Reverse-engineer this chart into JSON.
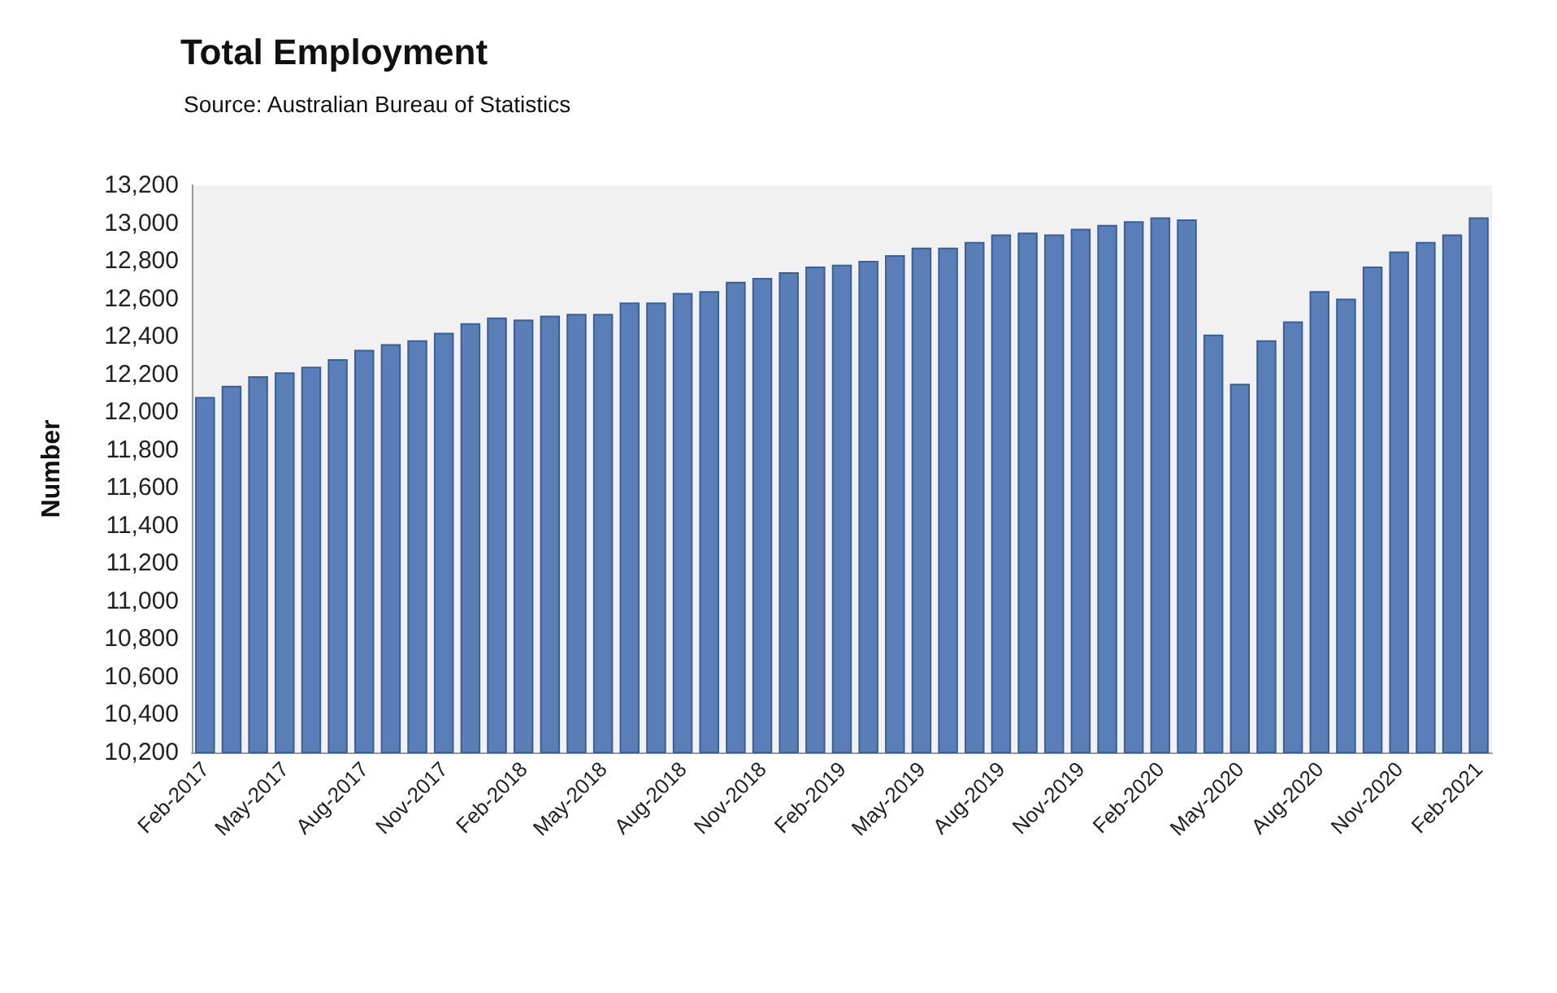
{
  "chart_data": {
    "type": "bar",
    "title": "Total Employment",
    "subtitle": "Source: Australian Bureau of Statistics",
    "ylabel": "Number",
    "categories": [
      "Feb-2017",
      null,
      null,
      "May-2017",
      null,
      null,
      "Aug-2017",
      null,
      null,
      "Nov-2017",
      null,
      null,
      "Feb-2018",
      null,
      null,
      "May-2018",
      null,
      null,
      "Aug-2018",
      null,
      null,
      "Nov-2018",
      null,
      null,
      "Feb-2019",
      null,
      null,
      "May-2019",
      null,
      null,
      "Aug-2019",
      null,
      null,
      "Nov-2019",
      null,
      null,
      "Feb-2020",
      null,
      null,
      "May-2020",
      null,
      null,
      "Aug-2020",
      null,
      null,
      "Nov-2020",
      null,
      null,
      "Feb-2021"
    ],
    "values": [
      12080,
      12140,
      12190,
      12210,
      12240,
      12280,
      12330,
      12360,
      12380,
      12420,
      12470,
      12500,
      12490,
      12510,
      12520,
      12520,
      12580,
      12580,
      12630,
      12640,
      12690,
      12710,
      12740,
      12770,
      12780,
      12800,
      12830,
      12870,
      12870,
      12900,
      12940,
      12950,
      12940,
      12970,
      12990,
      13010,
      13030,
      13020,
      12410,
      12150,
      12380,
      12480,
      12640,
      12600,
      12770,
      12850,
      12900,
      12940,
      13030
    ],
    "color": "#5a7fb8",
    "ylim": [
      10200,
      13200
    ],
    "yticks": [
      {
        "value": 10200,
        "label": "10,200"
      },
      {
        "value": 10400,
        "label": "10,400"
      },
      {
        "value": 10600,
        "label": "10,600"
      },
      {
        "value": 10800,
        "label": "10,800"
      },
      {
        "value": 11000,
        "label": "11,000"
      },
      {
        "value": 11200,
        "label": "11,200"
      },
      {
        "value": 11400,
        "label": "11,400"
      },
      {
        "value": 11600,
        "label": "11,600"
      },
      {
        "value": 11800,
        "label": "11,800"
      },
      {
        "value": 12000,
        "label": "12,000"
      },
      {
        "value": 12200,
        "label": "12,200"
      },
      {
        "value": 12400,
        "label": "12,400"
      },
      {
        "value": 12600,
        "label": "12,600"
      },
      {
        "value": 12800,
        "label": "12,800"
      },
      {
        "value": 13000,
        "label": "13,000"
      },
      {
        "value": 13200,
        "label": "13,200"
      }
    ],
    "grid": false
  }
}
